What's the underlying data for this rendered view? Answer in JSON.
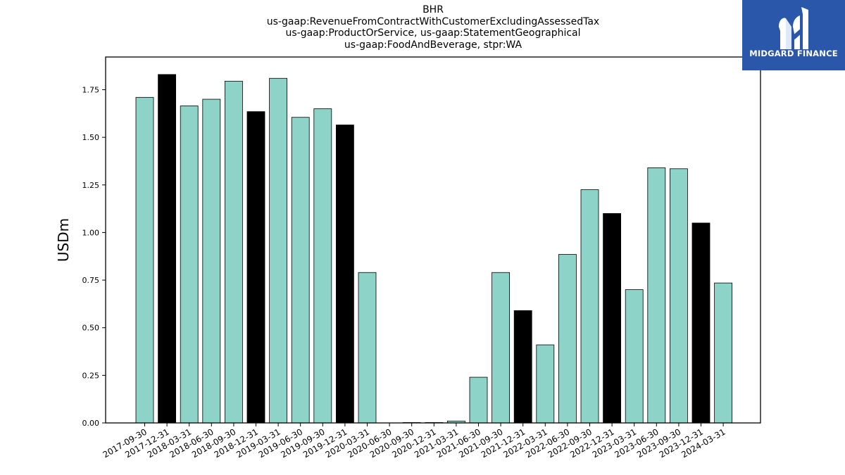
{
  "logo": {
    "text": "MIDGARD FINANCE",
    "icon": "midgard-logo-icon",
    "background": "#2b57aa"
  },
  "chart_data": {
    "type": "bar",
    "title_lines": [
      "BHR",
      "us-gaap:RevenueFromContractWithCustomerExcludingAssessedTax",
      "us-gaap:ProductOrService, us-gaap:StatementGeographical",
      "us-gaap:FoodAndBeverage, stpr:WA"
    ],
    "ylabel": "USDm",
    "xlabel": "",
    "ylim": [
      0,
      1.9
    ],
    "yticks": [
      "0.00",
      "0.25",
      "0.50",
      "0.75",
      "1.00",
      "1.25",
      "1.50",
      "1.75"
    ],
    "categories": [
      "2017-09-30",
      "2017-12-31",
      "2018-03-31",
      "2018-06-30",
      "2018-09-30",
      "2018-12-31",
      "2019-03-31",
      "2019-06-30",
      "2019-09-30",
      "2019-12-31",
      "2020-03-31",
      "2020-06-30",
      "2020-09-30",
      "2020-12-31",
      "2021-03-31",
      "2021-06-30",
      "2021-09-30",
      "2021-12-31",
      "2022-03-31",
      "2022-06-30",
      "2022-09-30",
      "2022-12-31",
      "2023-03-31",
      "2023-06-30",
      "2023-09-30",
      "2023-12-31",
      "2024-03-31"
    ],
    "values": [
      1.71,
      1.83,
      1.665,
      1.7,
      1.795,
      1.635,
      1.81,
      1.605,
      1.65,
      1.565,
      0.79,
      0.0,
      0.002,
      0.002,
      0.01,
      0.24,
      0.79,
      0.59,
      0.41,
      0.885,
      1.225,
      1.1,
      0.7,
      1.34,
      1.335,
      1.05,
      0.735
    ],
    "bar_colors": [
      "#8dd3c7",
      "#000000",
      "#8dd3c7",
      "#8dd3c7",
      "#8dd3c7",
      "#000000",
      "#8dd3c7",
      "#8dd3c7",
      "#8dd3c7",
      "#000000",
      "#8dd3c7",
      "#8dd3c7",
      "#8dd3c7",
      "#000000",
      "#8dd3c7",
      "#8dd3c7",
      "#8dd3c7",
      "#000000",
      "#8dd3c7",
      "#8dd3c7",
      "#8dd3c7",
      "#000000",
      "#8dd3c7",
      "#8dd3c7",
      "#8dd3c7",
      "#000000",
      "#8dd3c7"
    ],
    "grid": false
  }
}
